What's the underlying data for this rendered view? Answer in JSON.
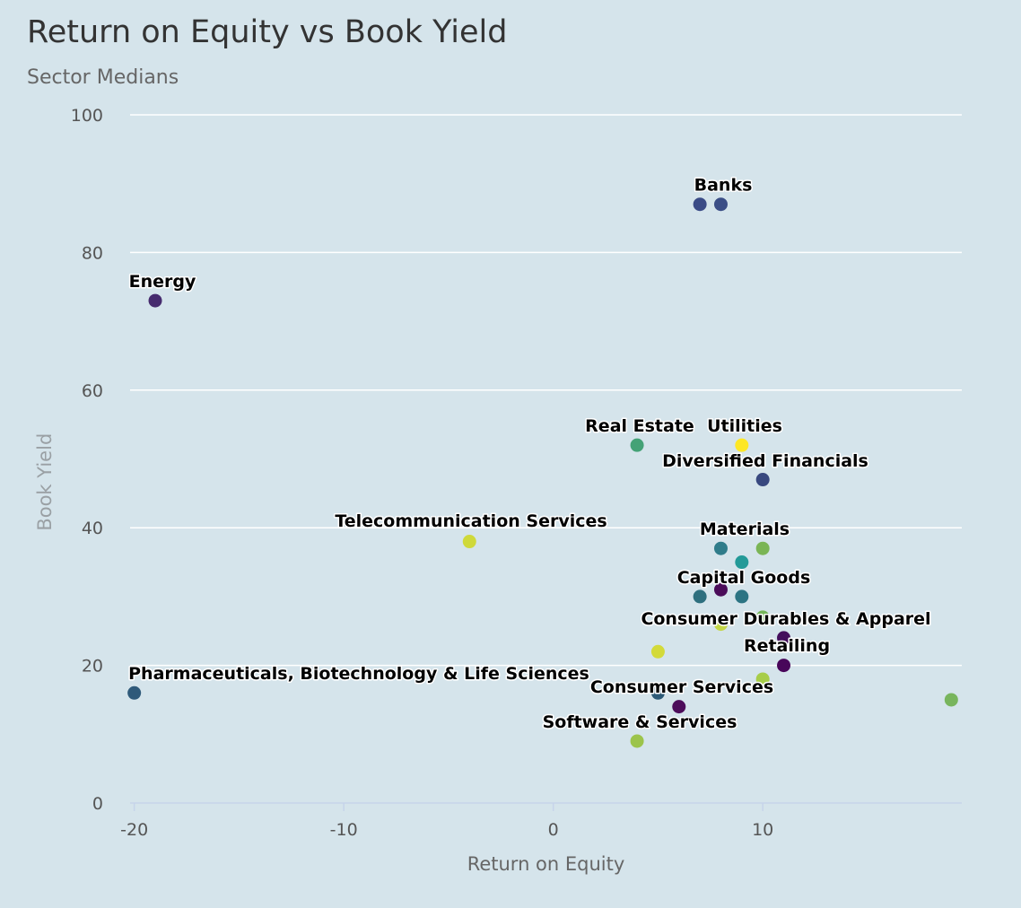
{
  "chart_data": {
    "type": "scatter",
    "title": "Return on Equity vs Book Yield",
    "subtitle": "Sector Medians",
    "xlabel": "Return on Equity",
    "ylabel": "Book Yield",
    "xlim": [
      -20.2,
      19.5
    ],
    "ylim": [
      0,
      100
    ],
    "x_ticks": [
      -20,
      -10,
      0,
      10
    ],
    "y_ticks": [
      0,
      20,
      40,
      60,
      80,
      100
    ],
    "grid": true,
    "legend": "none",
    "points": [
      {
        "x": 8,
        "y": 87,
        "color": "#3b4e86"
      },
      {
        "x": 7,
        "y": 87,
        "color": "#3a4b86",
        "label": "Banks"
      },
      {
        "x": -19,
        "y": 73,
        "color": "#462b6e",
        "label": "Energy"
      },
      {
        "x": 4,
        "y": 52,
        "color": "#44a276",
        "label": "Real Estate"
      },
      {
        "x": 9,
        "y": 52,
        "color": "#fde725",
        "label": "Utilities"
      },
      {
        "x": 10,
        "y": 47,
        "color": "#38487f",
        "label": "Diversified Financials"
      },
      {
        "x": -4,
        "y": 38,
        "color": "#cfd93a",
        "label": "Telecommunication Services"
      },
      {
        "x": 8,
        "y": 37,
        "color": "#2f7c8a"
      },
      {
        "x": 10,
        "y": 37,
        "color": "#7ab555",
        "label": "Materials"
      },
      {
        "x": 9,
        "y": 35,
        "color": "#239a98"
      },
      {
        "x": 8,
        "y": 31,
        "color": "#4a0c59"
      },
      {
        "x": 7,
        "y": 30,
        "color": "#2e6f7e"
      },
      {
        "x": 9,
        "y": 30,
        "color": "#2c7483",
        "label": "Capital Goods"
      },
      {
        "x": 10,
        "y": 27,
        "color": "#74b55a"
      },
      {
        "x": 8,
        "y": 26,
        "color": "#c3d646"
      },
      {
        "x": 11,
        "y": 24,
        "color": "#440e5c",
        "label": "Consumer Durables & Apparel"
      },
      {
        "x": 5,
        "y": 22,
        "color": "#d3da3a"
      },
      {
        "x": 11,
        "y": 20,
        "color": "#48065a",
        "label": "Retailing"
      },
      {
        "x": 10,
        "y": 18,
        "color": "#a7cd49"
      },
      {
        "x": -20,
        "y": 16,
        "color": "#2f5a7a",
        "label": "Pharmaceuticals, Biotechnology & Life Sciences"
      },
      {
        "x": 5,
        "y": 16,
        "color": "#2d5a77"
      },
      {
        "x": 19,
        "y": 15,
        "color": "#78b55d"
      },
      {
        "x": 6,
        "y": 14,
        "color": "#4c0c5a",
        "label": "Consumer Services"
      },
      {
        "x": 4,
        "y": 9,
        "color": "#9cc44b",
        "label": "Software & Services"
      }
    ]
  }
}
